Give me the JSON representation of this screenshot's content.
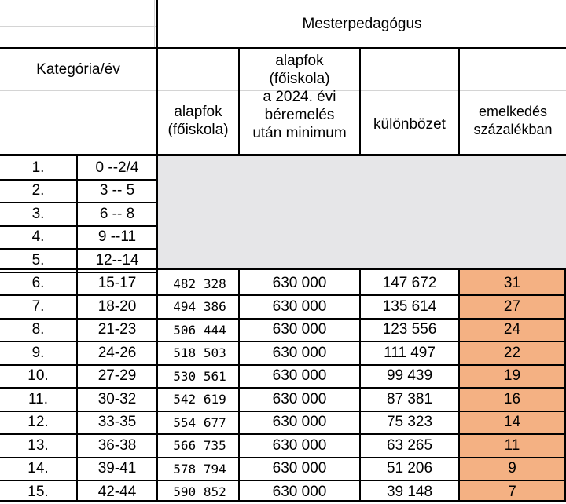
{
  "header": {
    "group_title": "Mesterpedagógus",
    "category_label": "Kategória/év",
    "col_base": [
      "alapfok",
      "(főiskola)"
    ],
    "col_new": [
      "alapfok",
      "(főiskola)",
      "a 2024. évi",
      "béremelés",
      "után minimum"
    ],
    "col_diff": "különbözet",
    "col_pct": [
      "emelkedés",
      "százalékban"
    ]
  },
  "colors": {
    "gray_fill": "#e6e6e8",
    "highlight_fill": "#f4b183",
    "border": "#000000"
  },
  "rows": [
    {
      "cat": "1.",
      "years": "0 --2/4"
    },
    {
      "cat": "2.",
      "years": "3 -- 5"
    },
    {
      "cat": "3.",
      "years": "6 -- 8"
    },
    {
      "cat": "4.",
      "years": "9 --11"
    },
    {
      "cat": "5.",
      "years": "12--14"
    },
    {
      "cat": "6.",
      "years": "15-17",
      "base": "482 328",
      "min": "630 000",
      "diff": "147 672",
      "pct": "31"
    },
    {
      "cat": "7.",
      "years": "18-20",
      "base": "494 386",
      "min": "630 000",
      "diff": "135 614",
      "pct": "27"
    },
    {
      "cat": "8.",
      "years": "21-23",
      "base": "506 444",
      "min": "630 000",
      "diff": "123 556",
      "pct": "24"
    },
    {
      "cat": "9.",
      "years": "24-26",
      "base": "518 503",
      "min": "630 000",
      "diff": "111 497",
      "pct": "22"
    },
    {
      "cat": "10.",
      "years": "27-29",
      "base": "530 561",
      "min": "630 000",
      "diff": "99 439",
      "pct": "19"
    },
    {
      "cat": "11.",
      "years": "30-32",
      "base": "542 619",
      "min": "630 000",
      "diff": "87 381",
      "pct": "16"
    },
    {
      "cat": "12.",
      "years": "33-35",
      "base": "554 677",
      "min": "630 000",
      "diff": "75 323",
      "pct": "14"
    },
    {
      "cat": "13.",
      "years": "36-38",
      "base": "566 735",
      "min": "630 000",
      "diff": "63 265",
      "pct": "11"
    },
    {
      "cat": "14.",
      "years": "39-41",
      "base": "578 794",
      "min": "630 000",
      "diff": "51 206",
      "pct": "9"
    },
    {
      "cat": "15.",
      "years": "42-44",
      "base": "590 852",
      "min": "630 000",
      "diff": "39 148",
      "pct": "7"
    }
  ]
}
